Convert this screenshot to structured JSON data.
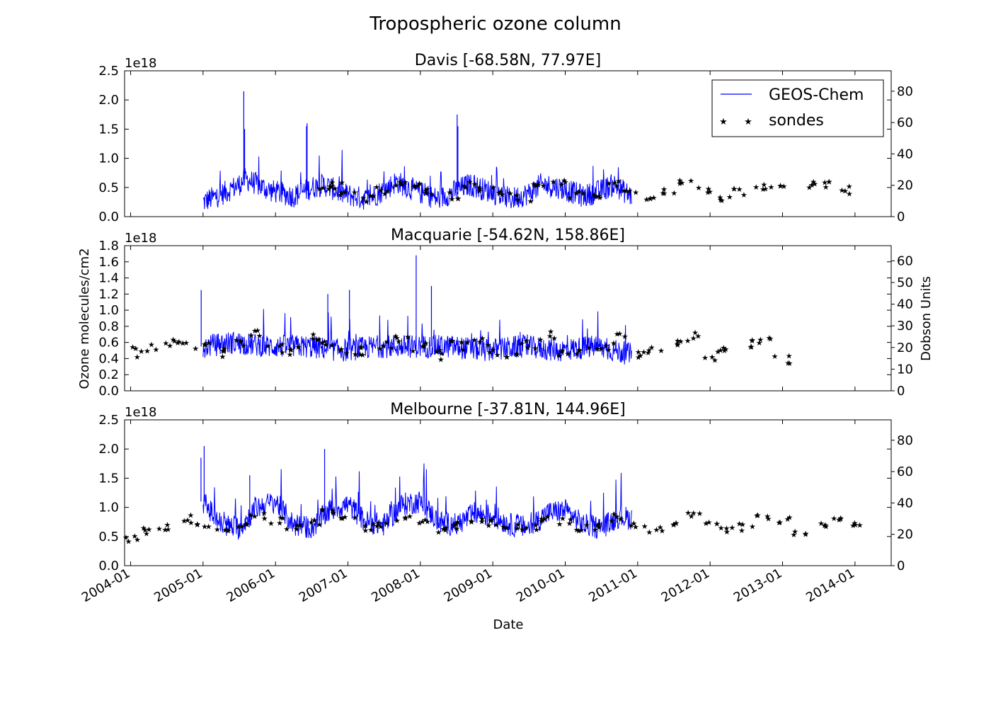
{
  "chart_data": {
    "type": "line",
    "title": "Tropospheric ozone column",
    "xlabel": "Date",
    "ylabel_left": "Ozone molecules/cm2",
    "ylabel_right": "Dobson Units",
    "x_ticks": [
      "2004-01",
      "2005-01",
      "2006-01",
      "2007-01",
      "2008-01",
      "2009-01",
      "2010-01",
      "2011-01",
      "2012-01",
      "2013-01",
      "2014-01"
    ],
    "x_range": [
      "2003-12",
      "2014-07"
    ],
    "legend": {
      "placement": "top-right",
      "entries": [
        "GEOS-Chem",
        "sondes"
      ]
    },
    "colors": {
      "model": "#0000ff",
      "sondes": "#000000"
    },
    "panels": [
      {
        "title": "Davis [-68.58N, 77.97E]",
        "offset_label": "1e18",
        "ylim": [
          0.0,
          2.5
        ],
        "y_ticks": [
          "0.0",
          "0.5",
          "1.0",
          "1.5",
          "2.0",
          "2.5"
        ],
        "y2lim": [
          0,
          93
        ],
        "y2_ticks": [
          "0",
          "20",
          "40",
          "60",
          "80"
        ],
        "series": [
          {
            "name": "GEOS-Chem",
            "style": "line",
            "x_range": [
              "2005-01",
              "2010-12"
            ],
            "x": [
              "2005-01",
              "2005-04",
              "2005-07",
              "2005-08",
              "2005-09",
              "2005-12",
              "2006-04",
              "2006-07",
              "2006-09",
              "2006-12",
              "2007-04",
              "2007-07",
              "2007-09",
              "2007-12",
              "2008-04",
              "2008-07",
              "2008-09",
              "2008-12",
              "2009-04",
              "2009-07",
              "2009-09",
              "2009-12",
              "2010-04",
              "2010-07",
              "2010-09",
              "2010-12"
            ],
            "values": [
              0.25,
              0.38,
              0.55,
              0.65,
              0.6,
              0.45,
              0.35,
              0.5,
              0.55,
              0.4,
              0.3,
              0.45,
              0.6,
              0.45,
              0.3,
              0.45,
              0.55,
              0.45,
              0.3,
              0.4,
              0.55,
              0.5,
              0.35,
              0.45,
              0.55,
              0.35
            ],
            "spikes": [
              [
                "2005-08",
                2.15
              ],
              [
                "2005-08",
                1.5
              ],
              [
                "2006-06",
                1.6
              ],
              [
                "2006-06",
                1.55
              ],
              [
                "2008-07",
                1.75
              ],
              [
                "2008-07",
                1.55
              ]
            ]
          },
          {
            "name": "sondes",
            "style": "star",
            "x": [
              "2006-09",
              "2006-11",
              "2007-01",
              "2007-04",
              "2007-07",
              "2007-10",
              "2007-12",
              "2008-03",
              "2008-06",
              "2008-09",
              "2008-12",
              "2009-03",
              "2009-06",
              "2009-09",
              "2009-12",
              "2010-03",
              "2010-06",
              "2010-09",
              "2010-12",
              "2011-03",
              "2011-06",
              "2011-09",
              "2011-12",
              "2012-03",
              "2012-06",
              "2012-09",
              "2012-12",
              "2013-06",
              "2013-09",
              "2013-12"
            ],
            "values": [
              18,
              20,
              14,
              12,
              17,
              22,
              20,
              16,
              13,
              20,
              18,
              14,
              12,
              20,
              21,
              14,
              13,
              21,
              16,
              13,
              17,
              23,
              18,
              11,
              16,
              20,
              18,
              20,
              21,
              17
            ]
          }
        ]
      },
      {
        "title": "Macquarie [-54.62N, 158.86E]",
        "offset_label": "1e18",
        "ylim": [
          0.0,
          1.8
        ],
        "y_ticks": [
          "0.0",
          "0.2",
          "0.4",
          "0.6",
          "0.8",
          "1.0",
          "1.2",
          "1.4",
          "1.6",
          "1.8"
        ],
        "y2lim": [
          0,
          67
        ],
        "y2_ticks": [
          "0",
          "10",
          "20",
          "30",
          "40",
          "50",
          "60"
        ],
        "series": [
          {
            "name": "GEOS-Chem",
            "style": "line",
            "x_range": [
              "2005-01",
              "2010-12"
            ],
            "x": [
              "2005-01",
              "2005-06",
              "2005-12",
              "2006-06",
              "2006-12",
              "2007-06",
              "2007-12",
              "2008-06",
              "2008-12",
              "2009-06",
              "2009-12",
              "2010-06",
              "2010-12"
            ],
            "values": [
              0.55,
              0.6,
              0.55,
              0.55,
              0.5,
              0.55,
              0.55,
              0.55,
              0.5,
              0.55,
              0.5,
              0.55,
              0.45
            ],
            "spikes": [
              [
                "2005-01",
                1.25
              ],
              [
                "2007-12",
                1.68
              ],
              [
                "2008-03",
                1.3
              ],
              [
                "2007-01",
                1.25
              ],
              [
                "2006-10",
                1.2
              ]
            ]
          },
          {
            "name": "sondes",
            "style": "star",
            "x": [
              "2004-01",
              "2004-04",
              "2004-07",
              "2004-10",
              "2005-01",
              "2005-04",
              "2005-07",
              "2005-10",
              "2006-01",
              "2006-04",
              "2006-07",
              "2006-10",
              "2007-01",
              "2007-04",
              "2007-07",
              "2007-10",
              "2008-01",
              "2008-04",
              "2008-07",
              "2008-10",
              "2009-01",
              "2009-04",
              "2009-07",
              "2009-10",
              "2010-01",
              "2010-04",
              "2010-07",
              "2010-10",
              "2011-01",
              "2011-04",
              "2011-07",
              "2011-10",
              "2012-01",
              "2012-04",
              "2012-07",
              "2012-10",
              "2013-01"
            ],
            "values": [
              18,
              20,
              22,
              24,
              20,
              18,
              22,
              27,
              20,
              18,
              24,
              22,
              18,
              19,
              21,
              23,
              20,
              17,
              21,
              24,
              19,
              18,
              22,
              25,
              18,
              19,
              21,
              24,
              17,
              19,
              23,
              25,
              16,
              18,
              22,
              24,
              15
            ]
          }
        ]
      },
      {
        "title": "Melbourne [-37.81N, 144.96E]",
        "offset_label": "1e18",
        "ylim": [
          0.0,
          2.5
        ],
        "y_ticks": [
          "0.0",
          "0.5",
          "1.0",
          "1.5",
          "2.0",
          "2.5"
        ],
        "y2lim": [
          0,
          93
        ],
        "y2_ticks": [
          "0",
          "20",
          "40",
          "60",
          "80"
        ],
        "series": [
          {
            "name": "GEOS-Chem",
            "style": "line",
            "x_range": [
              "2005-01",
              "2010-12"
            ],
            "x": [
              "2005-01",
              "2005-04",
              "2005-07",
              "2005-10",
              "2006-01",
              "2006-04",
              "2006-07",
              "2006-10",
              "2007-01",
              "2007-04",
              "2007-07",
              "2007-10",
              "2008-01",
              "2008-04",
              "2008-07",
              "2008-10",
              "2009-01",
              "2009-04",
              "2009-07",
              "2009-10",
              "2010-01",
              "2010-04",
              "2010-07",
              "2010-10",
              "2010-12"
            ],
            "values": [
              1.1,
              0.7,
              0.65,
              1.0,
              1.1,
              0.7,
              0.65,
              0.95,
              1.05,
              0.75,
              0.7,
              1.05,
              1.1,
              0.75,
              0.7,
              0.9,
              0.85,
              0.7,
              0.65,
              0.9,
              0.95,
              0.7,
              0.65,
              0.85,
              0.8
            ],
            "spikes": [
              [
                "2005-01",
                1.85
              ],
              [
                "2005-01",
                2.05
              ],
              [
                "2006-09",
                2.0
              ],
              [
                "2005-09",
                1.55
              ]
            ]
          },
          {
            "name": "sondes",
            "style": "star",
            "x": [
              "2004-01",
              "2004-04",
              "2004-07",
              "2004-10",
              "2005-01",
              "2005-04",
              "2005-07",
              "2005-10",
              "2006-01",
              "2006-04",
              "2006-07",
              "2006-10",
              "2007-01",
              "2007-04",
              "2007-07",
              "2007-10",
              "2008-01",
              "2008-04",
              "2008-07",
              "2008-10",
              "2009-01",
              "2009-04",
              "2009-07",
              "2009-10",
              "2010-01",
              "2010-04",
              "2010-07",
              "2010-10",
              "2011-01",
              "2011-04",
              "2011-07",
              "2011-10",
              "2012-01",
              "2012-04",
              "2012-07",
              "2012-10",
              "2013-01",
              "2013-04",
              "2013-07",
              "2013-10",
              "2014-01"
            ],
            "values": [
              18,
              22,
              25,
              30,
              27,
              24,
              26,
              32,
              29,
              24,
              27,
              34,
              30,
              25,
              26,
              31,
              29,
              23,
              26,
              30,
              28,
              24,
              25,
              30,
              28,
              24,
              25,
              31,
              26,
              23,
              27,
              32,
              28,
              22,
              25,
              31,
              29,
              22,
              25,
              30,
              27
            ]
          }
        ]
      }
    ]
  }
}
